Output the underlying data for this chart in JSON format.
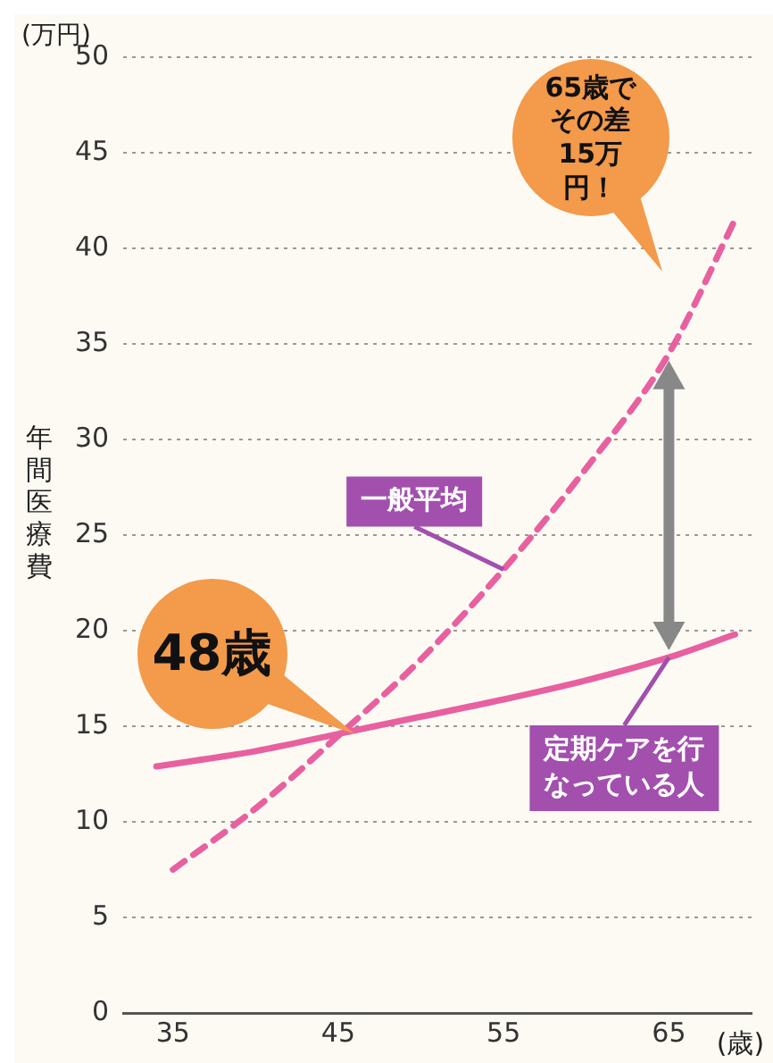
{
  "chart_data": {
    "type": "line",
    "ylabel": "年間医療費",
    "xlabel": "(歳)",
    "annotations": [
      "(万円)",
      "65歳でその差15万円！",
      {
        "text": "48歳",
        "x": 46,
        "y": 14.6
      }
    ],
    "xlim": [
      32,
      70
    ],
    "xticks": [
      35,
      45,
      55,
      65
    ],
    "ylim": [
      0,
      50
    ],
    "yticks": [
      0,
      5,
      10,
      15,
      20,
      25,
      30,
      35,
      40,
      45,
      50
    ],
    "grid": "y",
    "legend": false,
    "marker": "none",
    "series": [
      {
        "name": "一般平均",
        "color": "#e8609f",
        "line_style": "dashed",
        "x": [
          35,
          40,
          45,
          50,
          55,
          60,
          65,
          69
        ],
        "values": [
          7.5,
          10.7,
          14.5,
          18.5,
          23.2,
          28.5,
          34.5,
          41.5
        ]
      },
      {
        "name": "定期ケアを行なっている人",
        "color": "#e8609f",
        "line_style": "solid",
        "x": [
          34,
          40,
          45,
          50,
          55,
          60,
          65,
          69
        ],
        "values": [
          12.9,
          13.7,
          14.6,
          15.5,
          16.4,
          17.4,
          18.6,
          19.8
        ]
      }
    ]
  }
}
